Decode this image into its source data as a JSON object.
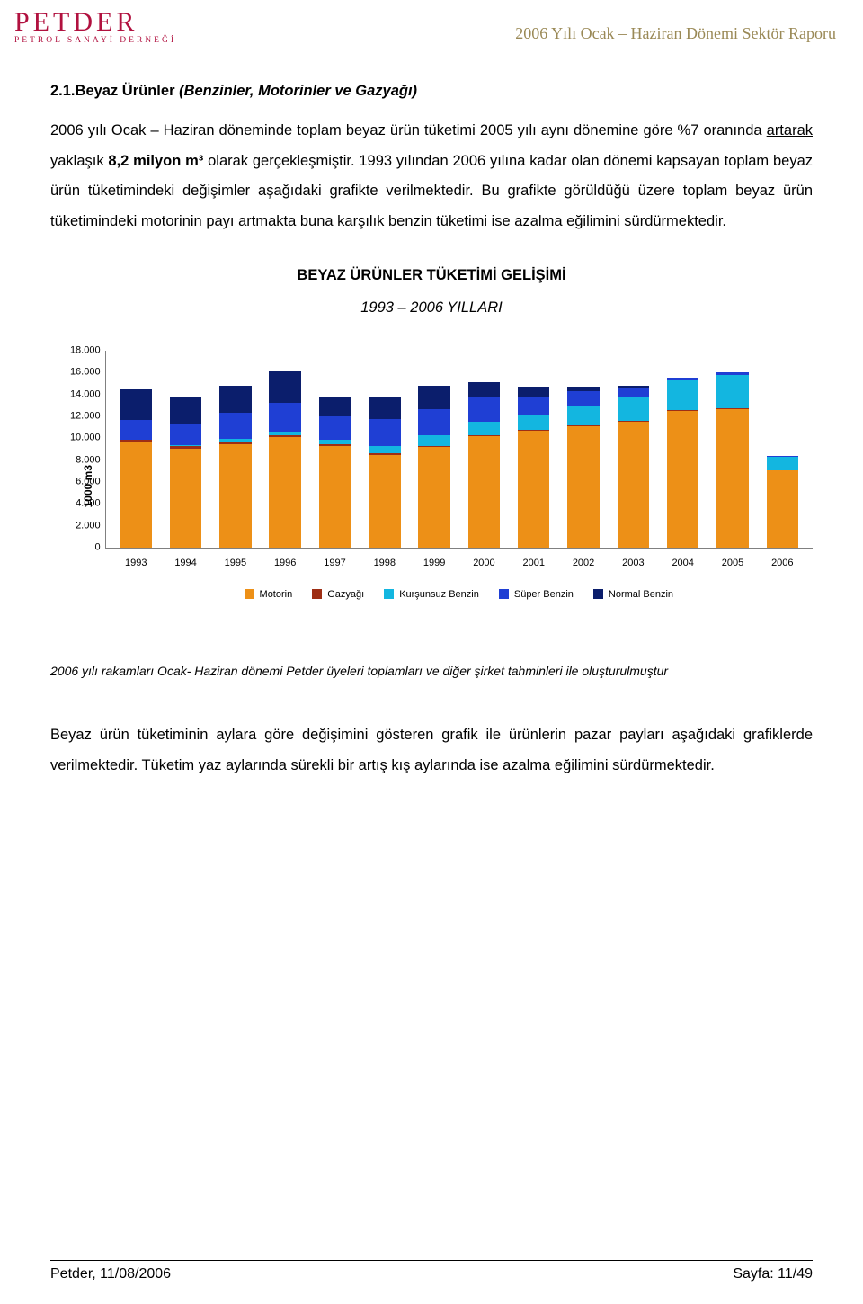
{
  "header": {
    "logo_color": "#b1113f",
    "logo_main": "PETDER",
    "logo_sub": "PETROL SANAYİ DERNEĞİ",
    "report_title": "2006 Yılı Ocak – Haziran Dönemi Sektör Raporu",
    "title_color": "#9a8956",
    "rule_color": "#9a8956"
  },
  "section": {
    "heading_num": "2.1.",
    "heading_plain": "Beyaz Ürünler ",
    "heading_italic": "(Benzinler, Motorinler ve Gazyağı)"
  },
  "para1_html": "2006 yılı Ocak – Haziran döneminde toplam beyaz ürün tüketimi 2005 yılı aynı dönemine göre %7 oranında <span class='u'>artarak</span> yaklaşık <span class='b'>8,2 milyon m³</span> olarak gerçekleşmiştir. 1993 yılından 2006 yılına kadar olan dönemi kapsayan toplam beyaz ürün tüketimindeki değişimler aşağıdaki grafikte verilmektedir. Bu grafikte görüldüğü üzere toplam beyaz ürün tüketimindeki motorinin payı artmakta buna karşılık benzin tüketimi ise azalma eğilimini sürdürmektedir.",
  "chart": {
    "title": "BEYAZ ÜRÜNLER TÜKETİMİ GELİŞİMİ",
    "subtitle": "1993 – 2006 YILLARI",
    "ylabel": "1000 m3",
    "ymax": 18000,
    "yticks": [
      {
        "v": 0,
        "label": "0"
      },
      {
        "v": 2000,
        "label": "2.000"
      },
      {
        "v": 4000,
        "label": "4.000"
      },
      {
        "v": 6000,
        "label": "6.000"
      },
      {
        "v": 8000,
        "label": "8.000"
      },
      {
        "v": 10000,
        "label": "10.000"
      },
      {
        "v": 12000,
        "label": "12.000"
      },
      {
        "v": 14000,
        "label": "14.000"
      },
      {
        "v": 16000,
        "label": "16.000"
      },
      {
        "v": 18000,
        "label": "18.000"
      }
    ],
    "categories": [
      "1993",
      "1994",
      "1995",
      "1996",
      "1997",
      "1998",
      "1999",
      "2000",
      "2001",
      "2002",
      "2003",
      "2004",
      "2005",
      "2006"
    ],
    "series": [
      {
        "key": "motorin",
        "label": "Motorin",
        "color": "#ed9017"
      },
      {
        "key": "gazyagi",
        "label": "Gazyağı",
        "color": "#9e2e14"
      },
      {
        "key": "kursunsuz",
        "label": "Kurşunsuz Benzin",
        "color": "#13b6e0"
      },
      {
        "key": "super",
        "label": "Süper Benzin",
        "color": "#1f3fd4"
      },
      {
        "key": "normal",
        "label": "Normal Benzin",
        "color": "#0b1e6c"
      }
    ],
    "data": {
      "motorin": [
        9600,
        9000,
        9400,
        10000,
        9200,
        8400,
        9100,
        10100,
        10600,
        11000,
        11400,
        12400,
        12600,
        7000
      ],
      "gazyagi": [
        200,
        200,
        180,
        180,
        160,
        150,
        140,
        120,
        100,
        90,
        80,
        60,
        50,
        40
      ],
      "kursunsuz": [
        0,
        100,
        300,
        350,
        400,
        700,
        1000,
        1200,
        1400,
        1800,
        2200,
        2700,
        3000,
        1200
      ],
      "super": [
        1800,
        2000,
        2400,
        2600,
        2200,
        2400,
        2300,
        2200,
        1600,
        1300,
        900,
        300,
        250,
        100
      ],
      "normal": [
        2800,
        2400,
        2400,
        2900,
        1800,
        2100,
        2200,
        1400,
        900,
        400,
        100,
        0,
        0,
        0
      ]
    }
  },
  "note": "2006 yılı rakamları Ocak- Haziran dönemi Petder üyeleri toplamları ve diğer şirket tahminleri ile oluşturulmuştur",
  "para2": "Beyaz ürün tüketiminin aylara göre değişimini gösteren grafik ile ürünlerin pazar payları aşağıdaki grafiklerde verilmektedir.   Tüketim yaz aylarında sürekli bir artış kış aylarında ise azalma eğilimini sürdürmektedir.",
  "footer": {
    "left": "Petder, 11/08/2006",
    "right": "Sayfa:   11/49"
  }
}
